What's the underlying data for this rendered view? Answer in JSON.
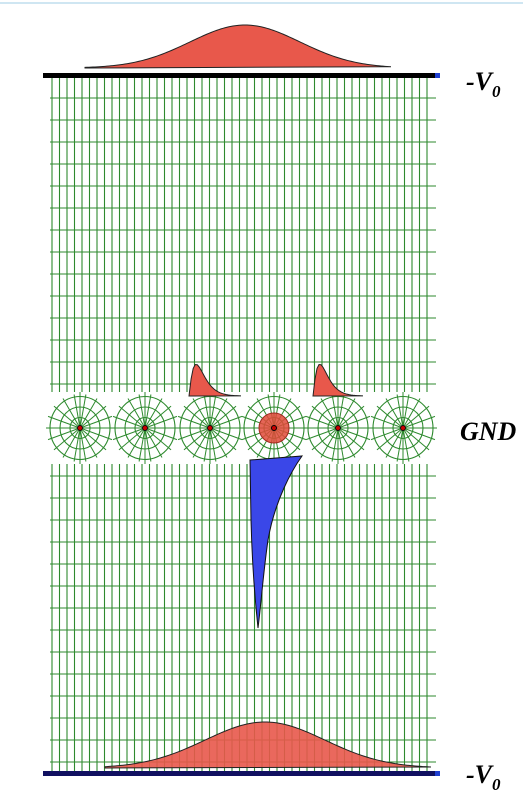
{
  "labels": {
    "top": {
      "main": "-V",
      "subscript": "0"
    },
    "middle": "GND",
    "bottom": {
      "main": "-V",
      "subscript": "0"
    }
  }
}
